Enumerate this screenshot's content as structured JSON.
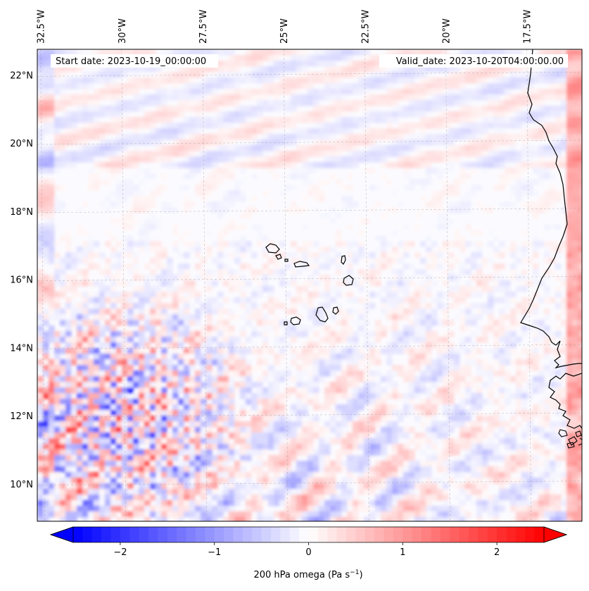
{
  "map": {
    "start_date_label": "Start date: 2023-10-19_00:00:00",
    "valid_date_label": "Valid_date: 2023-10-20T04:00:00.00",
    "lon_ticks": [
      {
        "value": -32.5,
        "label": "32.5°W"
      },
      {
        "value": -30,
        "label": "30°W"
      },
      {
        "value": -27.5,
        "label": "27.5°W"
      },
      {
        "value": -25,
        "label": "25°W"
      },
      {
        "value": -22.5,
        "label": "22.5°W"
      },
      {
        "value": -20,
        "label": "20°W"
      },
      {
        "value": -17.5,
        "label": "17.5°W"
      }
    ],
    "lat_ticks": [
      {
        "value": 22,
        "label": "22°N"
      },
      {
        "value": 20,
        "label": "20°N"
      },
      {
        "value": 18,
        "label": "18°N"
      },
      {
        "value": 16,
        "label": "16°N"
      },
      {
        "value": 14,
        "label": "14°N"
      },
      {
        "value": 12,
        "label": "12°N"
      },
      {
        "value": 10,
        "label": "10°N"
      }
    ],
    "extent": {
      "lon_min": -32.6,
      "lon_max": -15.8,
      "lat_min": 8.9,
      "lat_max": 22.75
    },
    "colormap": "bwr",
    "field": "200 hPa omega",
    "field_range": [
      -2.75,
      2.75
    ]
  },
  "colorbar": {
    "label_prefix": "200 hPa omega (Pa s",
    "label_exponent": "−1",
    "label_suffix": ")",
    "ticks": [
      {
        "value": -2,
        "label": "−2"
      },
      {
        "value": -1,
        "label": "−1"
      },
      {
        "value": 0,
        "label": "0"
      },
      {
        "value": 1,
        "label": "1"
      },
      {
        "value": 2,
        "label": "2"
      }
    ],
    "range": [
      -2.5,
      2.5
    ],
    "extend": "both",
    "colors": {
      "min": "#0000ff",
      "mid": "#ffffff",
      "max": "#ff0000"
    }
  }
}
